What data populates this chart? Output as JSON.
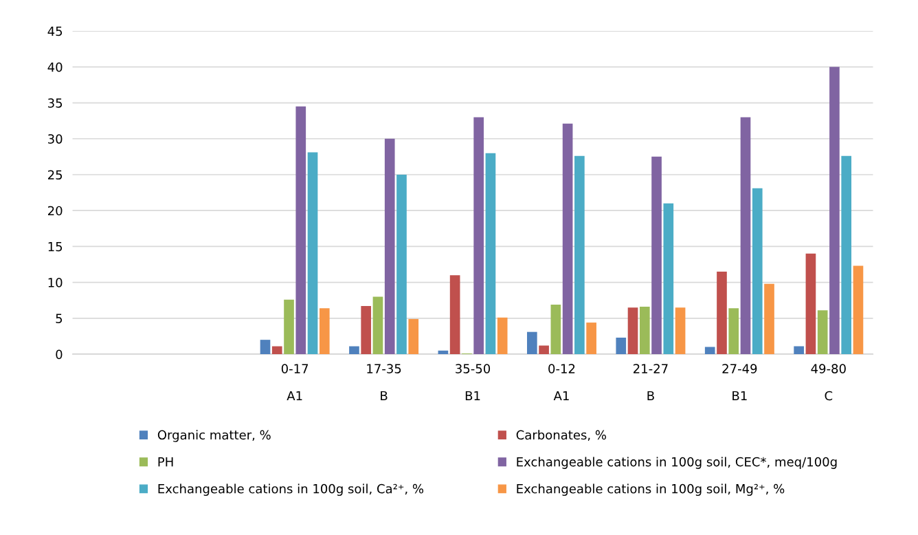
{
  "chart_data": {
    "type": "bar",
    "categories": [
      null,
      null,
      "0-17\nA1",
      "17-35\nB",
      "35-50\nB1",
      "0-12\nA1",
      "21-27\nB",
      "27-49\nB1",
      "49-80\nC"
    ],
    "series": [
      {
        "name": "Organic matter, %",
        "color": "#4f81bd",
        "values": [
          null,
          null,
          2.0,
          1.1,
          0.5,
          3.1,
          2.3,
          1.0,
          1.1
        ]
      },
      {
        "name": "Carbonates, %",
        "color": "#c0504d",
        "values": [
          null,
          null,
          1.1,
          6.7,
          11.0,
          1.2,
          6.5,
          11.5,
          14.0
        ]
      },
      {
        "name": "PH",
        "color": "#9bbb59",
        "values": [
          null,
          null,
          7.6,
          8.0,
          0.1,
          6.9,
          6.6,
          6.4,
          6.1
        ]
      },
      {
        "name": "Exchangeable cations in 100g soil, CEC*, meq/100g",
        "color": "#8064a2",
        "values": [
          null,
          null,
          34.5,
          30.0,
          33.0,
          32.1,
          27.5,
          33.0,
          40.0
        ]
      },
      {
        "name": "Exchangeable cations in 100g soil, Ca²⁺, %",
        "color": "#4bacc6",
        "values": [
          null,
          null,
          28.1,
          25.0,
          28.0,
          27.6,
          21.0,
          23.1,
          27.6
        ]
      },
      {
        "name": "Exchangeable cations in 100g soil, Mg²⁺, %",
        "color": "#f79646",
        "values": [
          null,
          null,
          6.4,
          4.9,
          5.1,
          4.4,
          6.5,
          9.8,
          12.3
        ]
      }
    ],
    "ylim": [
      0,
      45
    ],
    "yticks": [
      0,
      5,
      10,
      15,
      20,
      25,
      30,
      35,
      40,
      45
    ],
    "grid": "y",
    "legend": "bottom"
  }
}
